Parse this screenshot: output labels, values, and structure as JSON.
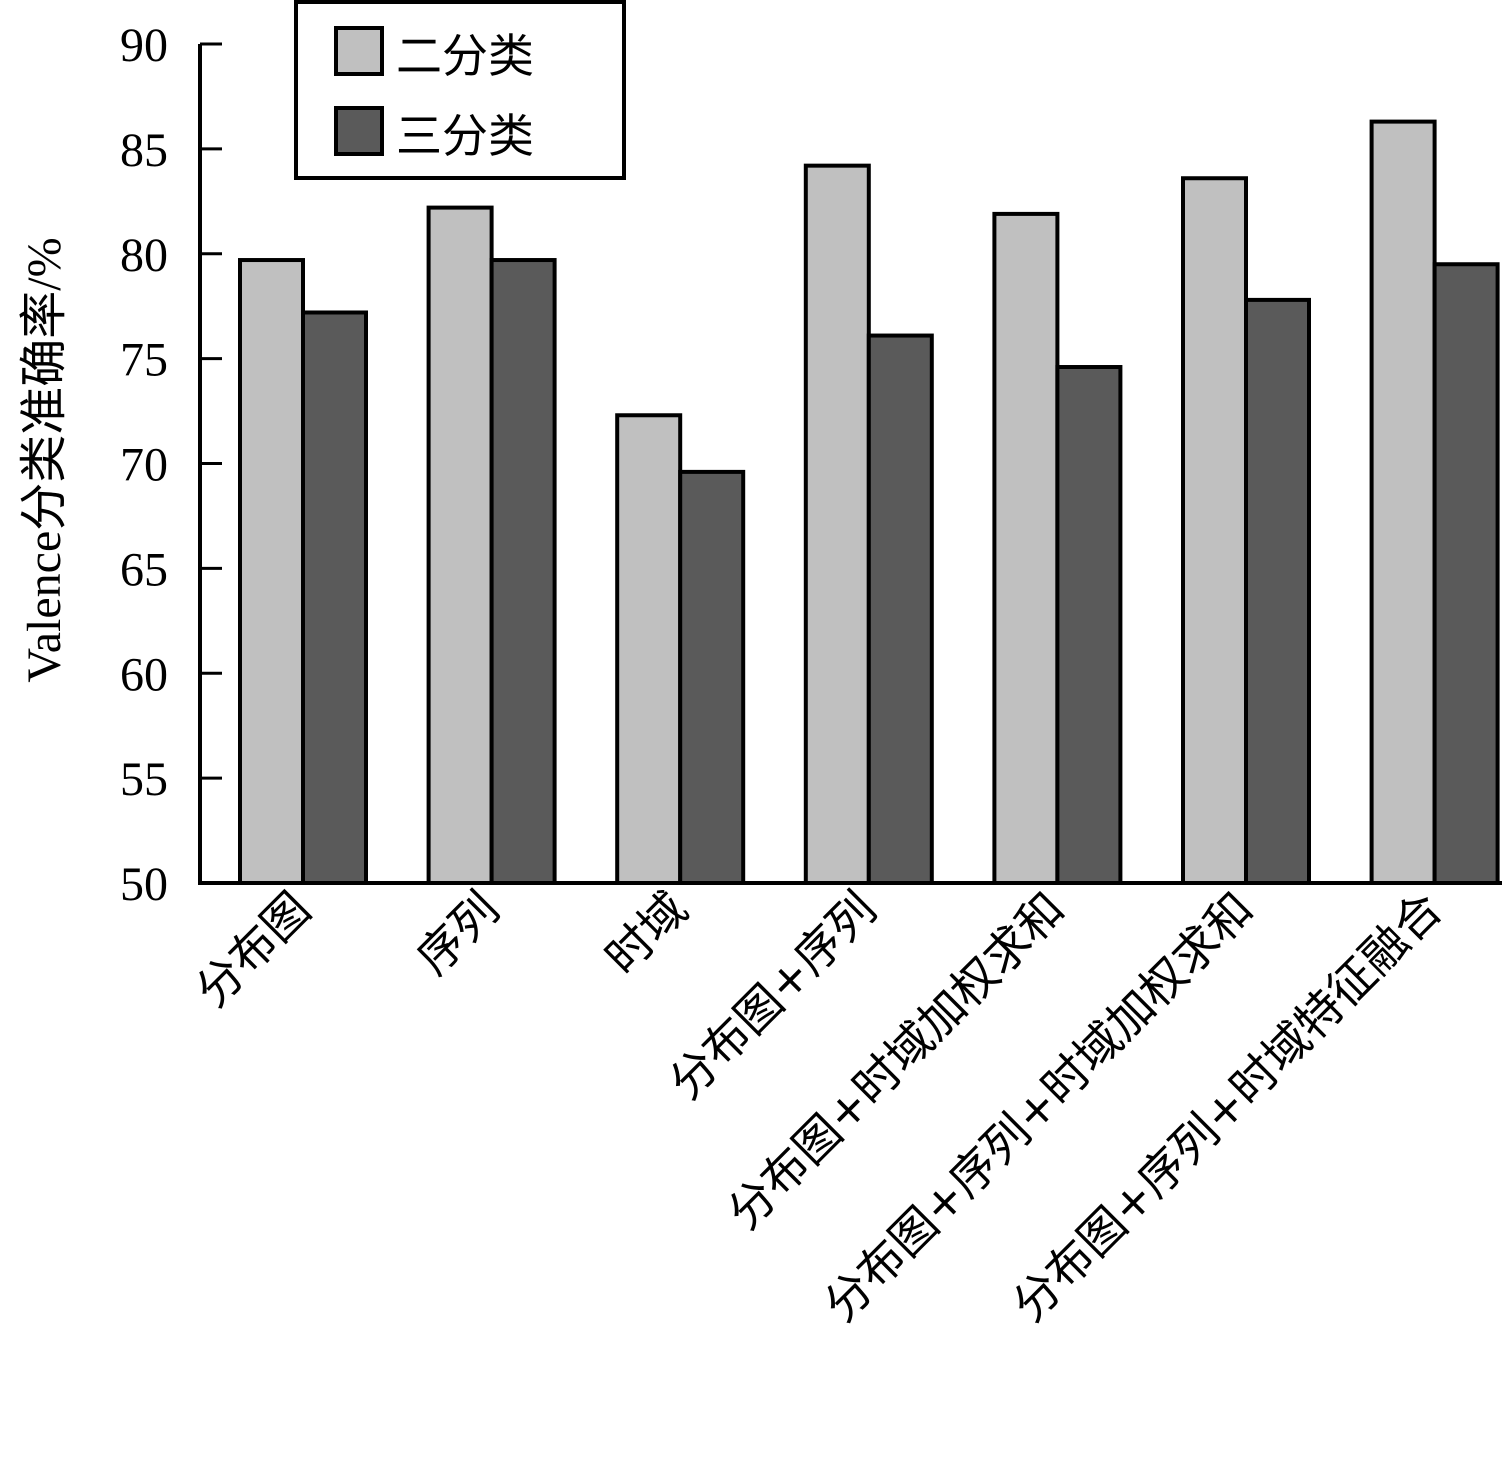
{
  "chart_data": {
    "type": "bar",
    "title": "",
    "xlabel": "",
    "ylabel": "Valence分类准确率/%",
    "ylim": [
      50,
      90
    ],
    "yticks": [
      "50",
      "55",
      "60",
      "65",
      "70",
      "75",
      "80",
      "85",
      "90"
    ],
    "grid": false,
    "legend_position": "top-center",
    "categories": [
      "分布图",
      "序列",
      "时域",
      "分布图+序列",
      "分布图+时域加权求和",
      "分布图+序列+时域加权求和",
      "分布图+序列+时域特征融合"
    ],
    "series": [
      {
        "name": "二分类",
        "color": "#c0c0c0",
        "values": [
          79.7,
          82.2,
          72.3,
          84.2,
          81.9,
          83.6,
          86.3
        ]
      },
      {
        "name": "三分类",
        "color": "#5a5a5a",
        "values": [
          77.2,
          79.7,
          69.6,
          76.1,
          74.6,
          77.8,
          79.5
        ]
      }
    ]
  }
}
